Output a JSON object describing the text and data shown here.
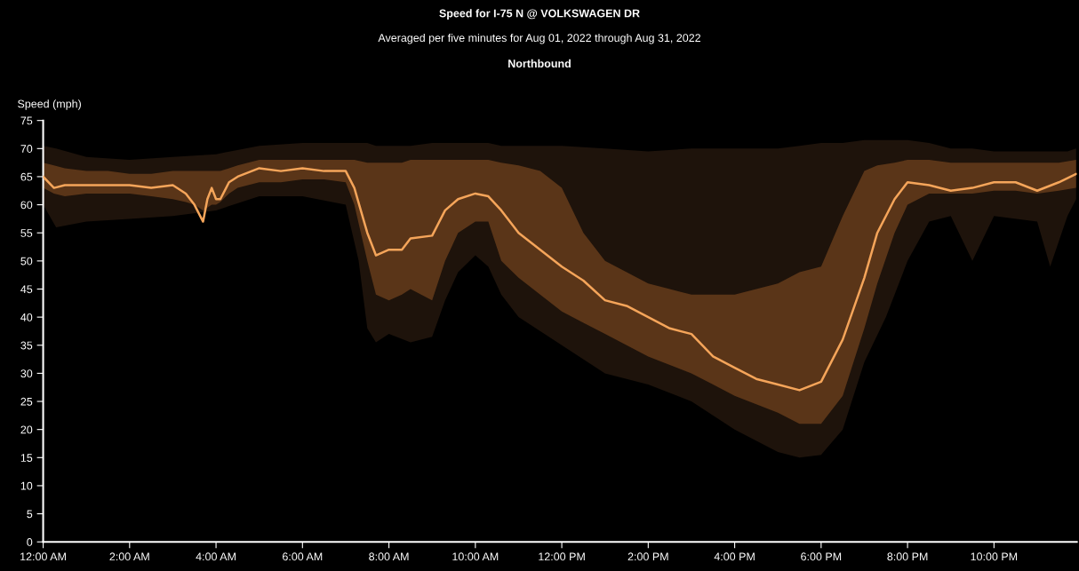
{
  "chart_data": {
    "type": "line",
    "title": "Speed for I-75 N @ VOLKSWAGEN DR",
    "subtitle": "Averaged per five minutes for Aug 01, 2022 through Aug 31, 2022",
    "annotations": [
      "Northbound"
    ],
    "ylabel": "Speed (mph)",
    "xlim": [
      0,
      23.917
    ],
    "ylim": [
      0,
      75
    ],
    "xticks": [
      {
        "value": 0,
        "label": "12:00 AM"
      },
      {
        "value": 2,
        "label": "2:00 AM"
      },
      {
        "value": 4,
        "label": "4:00 AM"
      },
      {
        "value": 6,
        "label": "6:00 AM"
      },
      {
        "value": 8,
        "label": "8:00 AM"
      },
      {
        "value": 10,
        "label": "10:00 AM"
      },
      {
        "value": 12,
        "label": "12:00 PM"
      },
      {
        "value": 14,
        "label": "2:00 PM"
      },
      {
        "value": 16,
        "label": "4:00 PM"
      },
      {
        "value": 18,
        "label": "6:00 PM"
      },
      {
        "value": 20,
        "label": "8:00 PM"
      },
      {
        "value": 22,
        "label": "10:00 PM"
      }
    ],
    "yticks": [
      0,
      5,
      10,
      15,
      20,
      25,
      30,
      35,
      40,
      45,
      50,
      55,
      60,
      65,
      70,
      75
    ],
    "grid": false,
    "series": [
      {
        "color": "#1e130b",
        "x": [
          0,
          0.3,
          1,
          2,
          3,
          4,
          5,
          6,
          7,
          7.3,
          7.5,
          7.7,
          8,
          8.5,
          9,
          9.3,
          9.6,
          10,
          10.3,
          10.6,
          11,
          12,
          13,
          14,
          15,
          16,
          17,
          17.5,
          18,
          18.5,
          19,
          19.5,
          20,
          20.5,
          21,
          21.5,
          22,
          23,
          23.3,
          23.7,
          23.9
        ],
        "values": [
          null,
          null,
          null,
          null,
          null,
          null,
          null,
          null,
          null,
          null,
          null,
          null,
          null,
          null,
          null,
          null,
          null,
          null,
          null,
          null,
          null,
          null,
          null,
          null,
          null,
          null,
          null,
          null,
          null,
          null,
          null,
          null,
          null,
          null,
          null,
          null,
          null,
          null,
          null,
          null,
          null
        ],
        "upper": [
          70.5,
          70,
          68.5,
          68,
          68.5,
          69,
          70.5,
          71,
          71,
          71,
          71,
          70.5,
          70.5,
          70.5,
          71,
          71,
          71,
          71,
          71,
          70.5,
          70.5,
          70.5,
          70,
          69.5,
          70,
          70,
          70,
          70.5,
          71,
          71,
          71.5,
          71.5,
          71.5,
          71,
          70,
          70,
          69.5,
          69.5,
          69.5,
          69.5,
          70
        ],
        "lower": [
          60,
          56,
          57,
          57.5,
          58,
          59,
          61.5,
          61.5,
          60,
          50,
          38,
          35.5,
          37,
          35.5,
          36.5,
          43,
          48,
          51,
          49,
          44,
          40,
          35,
          30,
          28,
          25,
          20,
          16,
          15,
          15.5,
          20,
          32,
          40,
          50,
          57,
          58,
          50,
          58,
          57,
          49,
          58,
          61
        ]
      },
      {
        "color": "#f5a55a",
        "x": [
          0,
          0.25,
          0.5,
          1,
          1.5,
          2,
          2.5,
          3,
          3.3,
          3.5,
          3.7,
          3.8,
          3.9,
          4,
          4.1,
          4.3,
          4.5,
          5,
          5.5,
          6,
          6.5,
          7,
          7.2,
          7.5,
          7.7,
          8,
          8.3,
          8.5,
          9,
          9.3,
          9.6,
          10,
          10.3,
          10.6,
          11,
          11.5,
          12,
          12.5,
          13,
          13.5,
          14,
          14.5,
          15,
          15.5,
          16,
          16.5,
          17,
          17.5,
          18,
          18.5,
          19,
          19.3,
          19.7,
          20,
          20.5,
          21,
          21.5,
          22,
          22.5,
          23,
          23.5,
          23.9
        ],
        "values": [
          65,
          63,
          63.5,
          63.5,
          63.5,
          63.5,
          63,
          63.5,
          62,
          60,
          57,
          61,
          63,
          61,
          61,
          64,
          65,
          66.5,
          66,
          66.5,
          66,
          66,
          63,
          55,
          51,
          52,
          52,
          54,
          54.5,
          59,
          61,
          62,
          61.5,
          59,
          55,
          52,
          49,
          46.5,
          43,
          42,
          40,
          38,
          37,
          33,
          31,
          29,
          28,
          27,
          28.5,
          36,
          47,
          55,
          61,
          64,
          63.5,
          62.5,
          63,
          64,
          64,
          62.5,
          64,
          65.5
        ],
        "lower": [
          63,
          62,
          61.5,
          62,
          62,
          62,
          61.5,
          61,
          60.5,
          60,
          59,
          59.5,
          60,
          60,
          60.5,
          62,
          63,
          64,
          64,
          64.5,
          64.5,
          64,
          60,
          50,
          44,
          43,
          44,
          45,
          43,
          50,
          55,
          57,
          57,
          50,
          47,
          44,
          41,
          39,
          37,
          35,
          33,
          31.5,
          30,
          28,
          26,
          24.5,
          23,
          21,
          21,
          26,
          38,
          46,
          55,
          60,
          62,
          62,
          62,
          62.5,
          62.5,
          62,
          62.5,
          63
        ],
        "upper": [
          67.5,
          67,
          66.5,
          66,
          66,
          65.5,
          65.5,
          66,
          66,
          66,
          66,
          66,
          66,
          66,
          66,
          66.5,
          67,
          68,
          68,
          68,
          68,
          68,
          68,
          67.5,
          67.5,
          67.5,
          67.5,
          68,
          68,
          68,
          68,
          68,
          68,
          67.5,
          67,
          66,
          63,
          55,
          50,
          48,
          46,
          45,
          44,
          44,
          44,
          45,
          46,
          48,
          49,
          58,
          66,
          67,
          67.5,
          68,
          68,
          67.5,
          67.5,
          67.5,
          67.5,
          67.5,
          67.5,
          68
        ]
      }
    ]
  }
}
